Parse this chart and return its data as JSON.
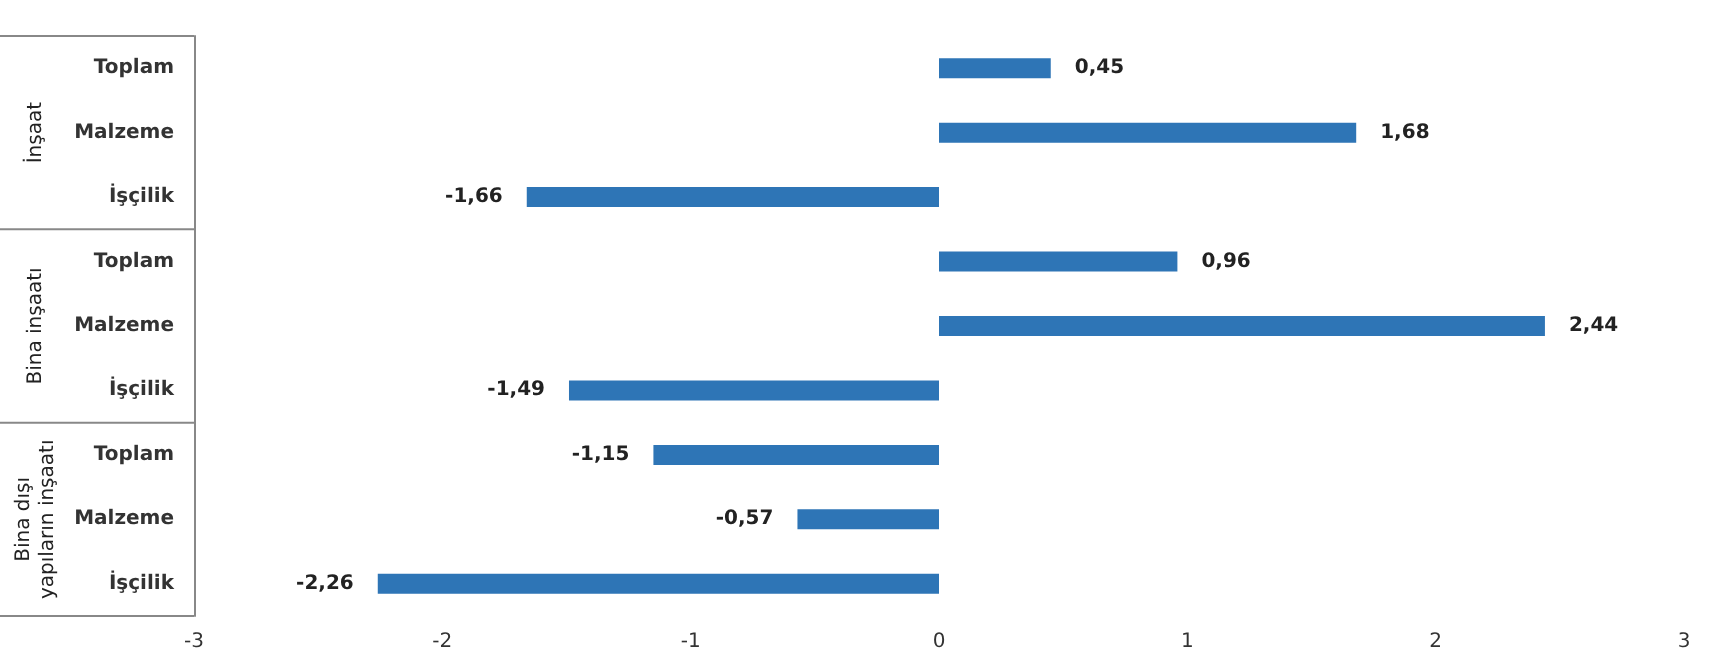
{
  "chart_data": {
    "type": "bar",
    "orientation": "horizontal",
    "categories": [
      "Toplam",
      "Malzeme",
      "İşçilik",
      "Toplam",
      "Malzeme",
      "İşçilik",
      "Toplam",
      "Malzeme",
      "İşçilik"
    ],
    "values": [
      0.45,
      1.68,
      -1.66,
      0.96,
      2.44,
      -1.49,
      -1.15,
      -0.57,
      -2.26
    ],
    "value_labels": [
      "0,45",
      "1,68",
      "-1,66",
      "0,96",
      "2,44",
      "-1,49",
      "-1,15",
      "-0,57",
      "-2,26"
    ],
    "color": "#2e75b6",
    "xlim": [
      -3,
      3
    ],
    "xticks": [
      -3,
      -2,
      -1,
      0,
      1,
      2,
      3
    ],
    "annotations": [
      "İnşaat",
      "Bina inşaatı",
      "Bina dışı yapıların inşaatı"
    ]
  }
}
